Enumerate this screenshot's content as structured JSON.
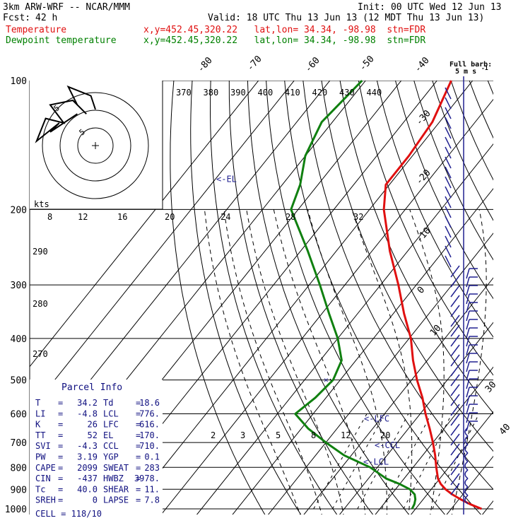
{
  "header": {
    "model": "3km ARW-WRF -- NCAR/MMM",
    "init": "Init: 00 UTC Wed 12 Jun 13",
    "fcst_label": "Fcst:",
    "fcst_value": "42 h",
    "valid": "Valid: 18 UTC Thu 13 Jun 13 (12 MDT Thu 13 Jun 13)",
    "temp_label": "Temperature",
    "temp_loc": "x,y=452.45,320.22   lat,lon= 34.34, -98.98  stn=FDR",
    "dew_label": "Dewpoint temperature",
    "dew_loc": "x,y=452.45,320.22   lat,lon= 34.34, -98.98  stn=FDR"
  },
  "colors": {
    "temperature": "#e01010",
    "dewpoint": "#108010",
    "wind": "#202090",
    "parcel_text": "#101080"
  },
  "chart_data": {
    "type": "line",
    "plot_kind": "skew-T log-P sounding",
    "pressure_levels": [
      100,
      200,
      300,
      400,
      500,
      600,
      700,
      800,
      900,
      1000
    ],
    "pressure_axis": "log",
    "isotherm_labels": [
      "-80",
      "-70",
      "-60",
      "-50",
      "-40",
      "-30",
      "-20",
      "-10",
      "0",
      "10",
      "20",
      "30",
      "40"
    ],
    "theta_labels": [
      "370",
      "380",
      "390",
      "400",
      "410",
      "420",
      "430",
      "440"
    ],
    "theta_left_labels": [
      "290",
      "280",
      "270"
    ],
    "mixing_ratio_labels": [
      "2",
      "3",
      "5",
      "8",
      "12",
      "20"
    ],
    "hodograph_speed_labels": [
      "8",
      "12",
      "16",
      "20",
      "24",
      "28",
      "32"
    ],
    "hodograph": {
      "units_label": "kts",
      "rings_m_s": [
        5,
        10,
        15
      ],
      "ring_labels": [
        "5",
        "5"
      ],
      "points_kt": [
        [
          -8,
          14
        ],
        [
          -20,
          6
        ],
        [
          -16,
          10
        ],
        [
          -26,
          2
        ],
        [
          -22,
          12
        ],
        [
          -14,
          10
        ],
        [
          -20,
          18
        ],
        [
          -10,
          20
        ],
        [
          -4,
          14
        ],
        [
          -8,
          18
        ],
        [
          -12,
          26
        ],
        [
          -2,
          22
        ],
        [
          0,
          16
        ]
      ]
    },
    "series": [
      {
        "name": "Temperature",
        "points": [
          {
            "p": 1000,
            "t": 38.5
          },
          {
            "p": 975,
            "t": 34.2
          },
          {
            "p": 950,
            "t": 30.5
          },
          {
            "p": 925,
            "t": 27.0
          },
          {
            "p": 900,
            "t": 24.0
          },
          {
            "p": 875,
            "t": 21.5
          },
          {
            "p": 850,
            "t": 19.5
          },
          {
            "p": 800,
            "t": 16.5
          },
          {
            "p": 750,
            "t": 13.5
          },
          {
            "p": 700,
            "t": 10.0
          },
          {
            "p": 650,
            "t": 6.0
          },
          {
            "p": 600,
            "t": 1.5
          },
          {
            "p": 550,
            "t": -3.0
          },
          {
            "p": 500,
            "t": -8.5
          },
          {
            "p": 450,
            "t": -14.0
          },
          {
            "p": 400,
            "t": -19.5
          },
          {
            "p": 350,
            "t": -27.0
          },
          {
            "p": 300,
            "t": -35.0
          },
          {
            "p": 250,
            "t": -45.0
          },
          {
            "p": 200,
            "t": -56.0
          },
          {
            "p": 175,
            "t": -61.0
          },
          {
            "p": 150,
            "t": -61.0
          },
          {
            "p": 125,
            "t": -62.0
          },
          {
            "p": 100,
            "t": -66.0
          }
        ]
      },
      {
        "name": "Dewpoint temperature",
        "points": [
          {
            "p": 1000,
            "t": 19.0
          },
          {
            "p": 975,
            "t": 18.6
          },
          {
            "p": 950,
            "t": 17.8
          },
          {
            "p": 925,
            "t": 16.5
          },
          {
            "p": 900,
            "t": 14.0
          },
          {
            "p": 875,
            "t": 10.0
          },
          {
            "p": 850,
            "t": 5.0
          },
          {
            "p": 800,
            "t": -2.0
          },
          {
            "p": 750,
            "t": -12.0
          },
          {
            "p": 700,
            "t": -20.0
          },
          {
            "p": 650,
            "t": -28.0
          },
          {
            "p": 600,
            "t": -35.0
          },
          {
            "p": 550,
            "t": -33.0
          },
          {
            "p": 500,
            "t": -32.0
          },
          {
            "p": 450,
            "t": -34.0
          },
          {
            "p": 400,
            "t": -40.0
          },
          {
            "p": 350,
            "t": -48.0
          },
          {
            "p": 300,
            "t": -57.0
          },
          {
            "p": 250,
            "t": -68.0
          },
          {
            "p": 200,
            "t": -82.0
          },
          {
            "p": 175,
            "t": -85.0
          },
          {
            "p": 150,
            "t": -90.0
          },
          {
            "p": 125,
            "t": -93.0
          },
          {
            "p": 100,
            "t": -91.0
          }
        ]
      }
    ],
    "level_markers": [
      {
        "label": "<-EL",
        "p": 170
      },
      {
        "label": "<-LFC",
        "p": 616
      },
      {
        "label": "<-CCL",
        "p": 710
      },
      {
        "label": "<-LCL",
        "p": 776
      }
    ],
    "wind_barbs": {
      "label_line1": "Full barb:",
      "label_line2": "5 m s",
      "label_sup": "-1"
    }
  },
  "parcel": {
    "title": "Parcel Info",
    "rows": [
      {
        "k1": "T",
        "v1": "34.2",
        "k2": "Td",
        "v2": "18.6"
      },
      {
        "k1": "LI",
        "v1": "-4.8",
        "k2": "LCL",
        "v2": "776."
      },
      {
        "k1": "K",
        "v1": "26",
        "k2": "LFC",
        "v2": "616."
      },
      {
        "k1": "TT",
        "v1": "52",
        "k2": "EL",
        "v2": "170."
      },
      {
        "k1": "SVI",
        "v1": "-4.3",
        "k2": "CCL",
        "v2": "710."
      },
      {
        "k1": "PW",
        "v1": "3.19",
        "k2": "YGP",
        "v2": "0.1"
      },
      {
        "k1": "CAPE",
        "v1": "2099",
        "k2": "SWEAT",
        "v2": "283"
      },
      {
        "k1": "CIN",
        "v1": "-437",
        "k2": "HWBZ",
        "v2": "3978."
      },
      {
        "k1": "Tc",
        "v1": "40.0",
        "k2": "SHEAR",
        "v2": "11."
      },
      {
        "k1": "SREH",
        "v1": "0",
        "k2": "LAPSE",
        "v2": "7.8"
      }
    ],
    "cell_label": "CELL",
    "cell_value": "118/10"
  }
}
